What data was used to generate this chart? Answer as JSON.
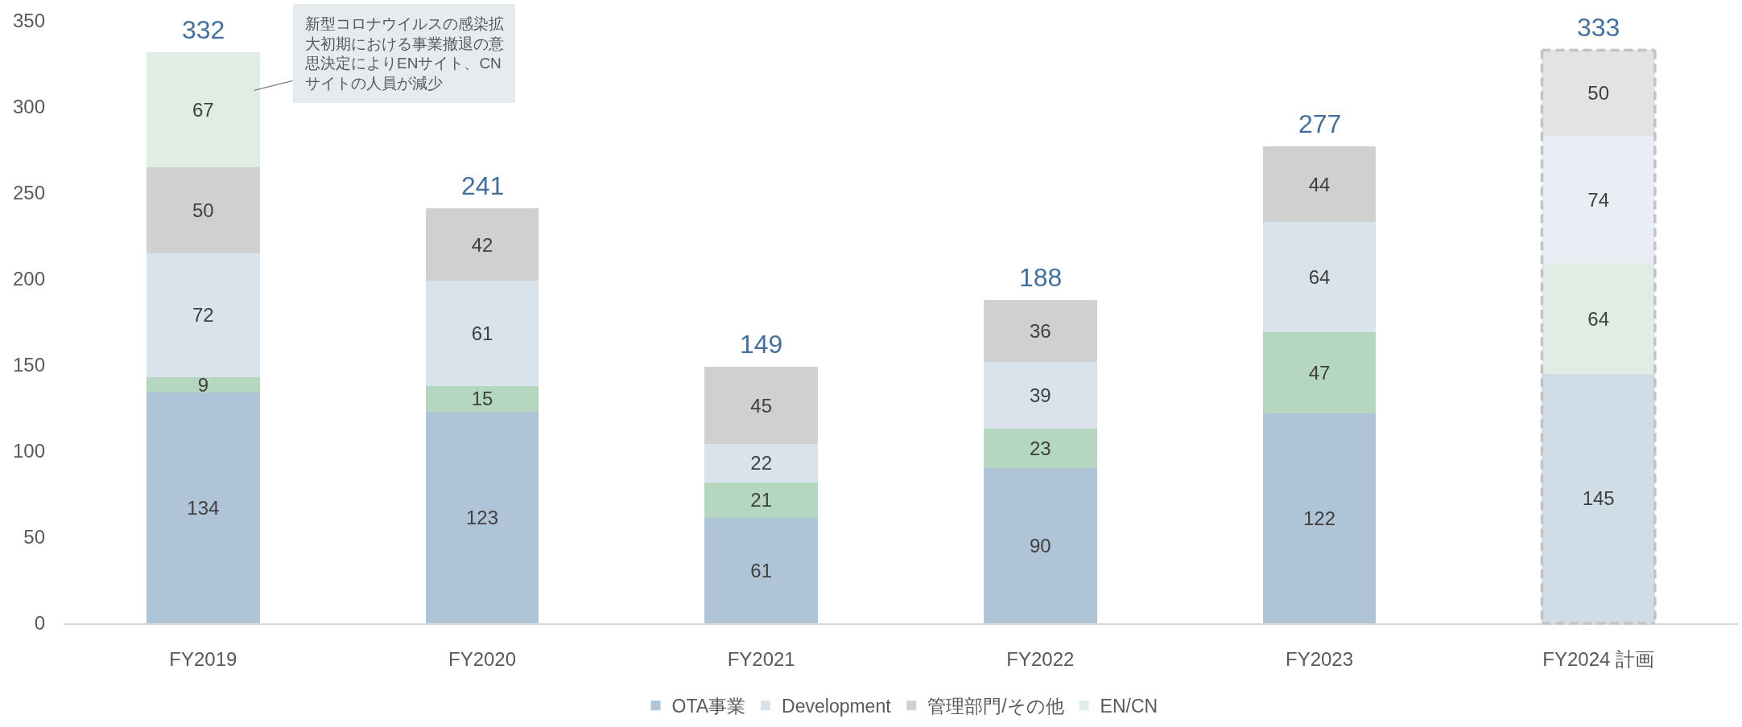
{
  "chart_data": {
    "type": "bar",
    "stacked": true,
    "categories": [
      "FY2019",
      "FY2020",
      "FY2021",
      "FY2022",
      "FY2023",
      "FY2024 計画"
    ],
    "series": [
      {
        "name": "OTA事業",
        "colors": [
          "#b0c4d8",
          "#b0c4d8",
          "#b0c4d8",
          "#b0c4d8",
          "#b0c4d8",
          "#d0dce6"
        ],
        "values": [
          134,
          123,
          61,
          90,
          122,
          145
        ]
      },
      {
        "colors": [
          "#b5d7bf",
          "#b5d7bf",
          "#b5d7bf",
          "#b5d7bf",
          "#b5d7bf",
          "#e0ede4"
        ],
        "values": [
          9,
          15,
          21,
          23,
          47,
          64
        ]
      },
      {
        "name": "Development",
        "colors": [
          "#d9e3ec",
          "#d9e3ec",
          "#d9e3ec",
          "#d9e3ec",
          "#d9e3ec",
          "#e8eef3"
        ],
        "values": [
          72,
          61,
          22,
          39,
          64,
          74
        ]
      },
      {
        "name": "管理部門/その他",
        "colors": [
          "#d0d0d0",
          "#d0d0d0",
          "#d0d0d0",
          "#d0d0d0",
          "#d0d0d0",
          "#e3e3e3"
        ],
        "values": [
          50,
          42,
          45,
          36,
          44,
          50
        ]
      },
      {
        "name": "EN/CN",
        "colors": [
          "#e0ede4",
          "#e0ede4",
          "#e0ede4",
          "#e0ede4",
          "#e0ede4",
          "#e0ede4"
        ],
        "values": [
          67,
          null,
          null,
          null,
          null,
          null
        ]
      }
    ],
    "totals": [
      "332",
      "241",
      "149",
      "188",
      "277",
      "333"
    ],
    "ylim": [
      0,
      350
    ],
    "yticks": [
      0,
      50,
      100,
      150,
      200,
      250,
      300,
      350
    ],
    "data_labels": true,
    "legend": "bottom",
    "grid": false,
    "annotations": [
      "新型コロナウイルスの感染拡大初期における事業撤退の意思決定によりENサイト、CNサイトの人員が減少"
    ]
  }
}
